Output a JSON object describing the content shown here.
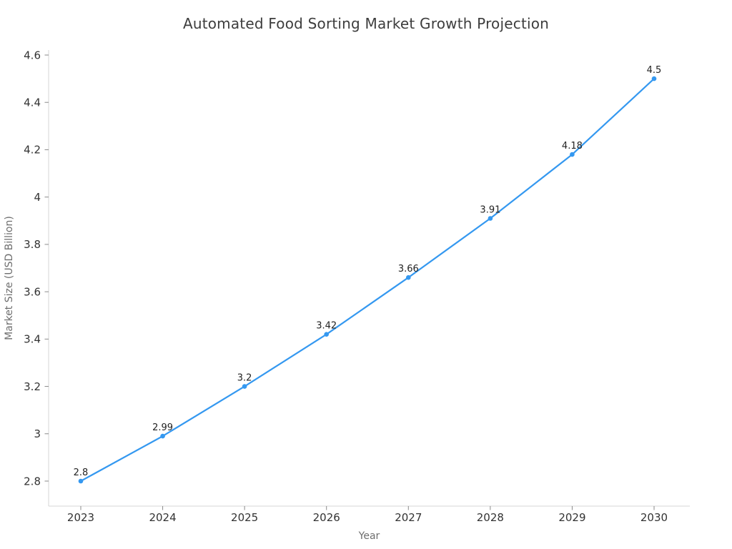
{
  "page": {
    "background": "#ffffff"
  },
  "chart_data": {
    "type": "line",
    "title": "Automated Food Sorting Market Growth Projection",
    "xlabel": "Year",
    "ylabel": "Market Size (USD Billion)",
    "x": [
      2023,
      2024,
      2025,
      2026,
      2027,
      2028,
      2029,
      2030
    ],
    "series": [
      {
        "name": "Market Size (USD Billion)",
        "values": [
          2.8,
          2.99,
          3.2,
          3.42,
          3.66,
          3.91,
          4.18,
          4.5
        ]
      }
    ],
    "point_labels": [
      "2.8",
      "2.99",
      "3.2",
      "3.42",
      "3.66",
      "3.91",
      "4.18",
      "4.5"
    ],
    "xtick_labels": [
      "2023",
      "2024",
      "2025",
      "2026",
      "2027",
      "2028",
      "2029",
      "2030"
    ],
    "ytick_values": [
      2.8,
      3.0,
      3.2,
      3.4,
      3.6,
      3.8,
      4.0,
      4.2,
      4.4,
      4.6
    ],
    "ytick_labels": [
      "2.8",
      "3",
      "3.2",
      "3.4",
      "3.6",
      "3.8",
      "4",
      "4.2",
      "4.4",
      "4.6"
    ],
    "xlim": [
      2022.61,
      2030.44
    ],
    "ylim": [
      2.69,
      4.62
    ],
    "grid": false,
    "legend": "none",
    "colors": {
      "line": "#3498f0",
      "marker": "#3498f0",
      "point_label": "#222222",
      "spine": "#d4d4d4",
      "tick": "#8a8a8a",
      "tick_label": "#333333",
      "axis_title": "#6e6e6e",
      "title": "#3d3d3d"
    }
  }
}
